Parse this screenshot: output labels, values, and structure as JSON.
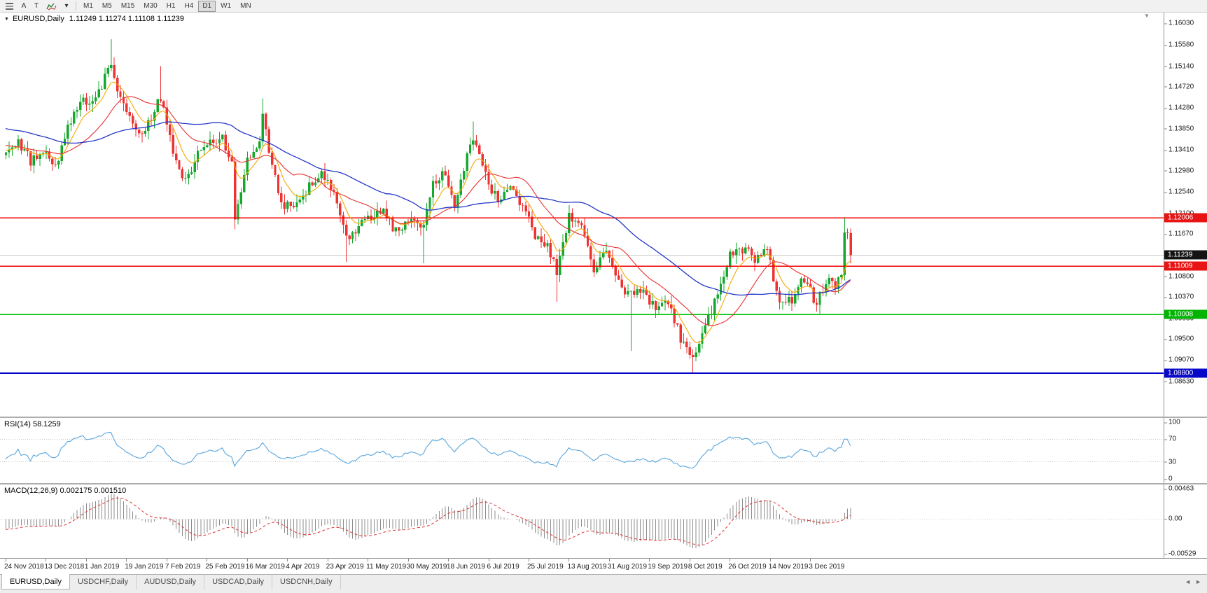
{
  "icons": {
    "dropdown_caret": "▾",
    "collapse_arrow": "▼",
    "shift_marker": "▼",
    "scroll_left": "◄",
    "scroll_right": "►"
  },
  "toolbar": {
    "pointer_label": "A",
    "text_label": "T",
    "timeframes": [
      {
        "label": "M1",
        "active": false
      },
      {
        "label": "M5",
        "active": false
      },
      {
        "label": "M15",
        "active": false
      },
      {
        "label": "M30",
        "active": false
      },
      {
        "label": "H1",
        "active": false
      },
      {
        "label": "H4",
        "active": false
      },
      {
        "label": "D1",
        "active": true
      },
      {
        "label": "W1",
        "active": false
      },
      {
        "label": "MN",
        "active": false
      }
    ]
  },
  "chart": {
    "symbol_label": "EURUSD,Daily",
    "ohlc": "1.11249 1.11274 1.11108 1.11239"
  },
  "rsi_panel": {
    "label": "RSI(14) 58.1259",
    "scale": [
      "100",
      "70",
      "30",
      "0"
    ]
  },
  "macd_panel": {
    "label": "MACD(12,26,9) 0.002175 0.001510",
    "scale": [
      "0.00463",
      "0.00",
      "-0.00529"
    ]
  },
  "price_scale": {
    "labels": [
      "1.16030",
      "1.15580",
      "1.15140",
      "1.14720",
      "1.14280",
      "1.13850",
      "1.13410",
      "1.12980",
      "1.12540",
      "1.12100",
      "1.11670",
      "1.10800",
      "1.10370",
      "1.09930",
      "1.09500",
      "1.09070",
      "1.08630"
    ],
    "badges": [
      {
        "text": "1.12006",
        "value": 1.12006,
        "bg": "#e81414",
        "fg": "#ffffff"
      },
      {
        "text": "1.11009",
        "value": 1.11009,
        "bg": "#e81414",
        "fg": "#ffffff"
      },
      {
        "text": "1.10008",
        "value": 1.10008,
        "bg": "#00b400",
        "fg": "#ffffff"
      },
      {
        "text": "1.08800",
        "value": 1.088,
        "bg": "#0808c8",
        "fg": "#ffffff"
      },
      {
        "text": "1.11239",
        "value": 1.11239,
        "bg": "#141414",
        "fg": "#ffffff"
      }
    ]
  },
  "time_axis": {
    "labels": [
      "24 Nov 2018",
      "13 Dec 2018",
      "1 Jan 2019",
      "19 Jan 2019",
      "7 Feb 2019",
      "25 Feb 2019",
      "16 Mar 2019",
      "4 Apr 2019",
      "23 Apr 2019",
      "11 May 2019",
      "30 May 2019",
      "18 Jun 2019",
      "6 Jul 2019",
      "25 Jul 2019",
      "13 Aug 2019",
      "31 Aug 2019",
      "19 Sep 2019",
      "8 Oct 2019",
      "26 Oct 2019",
      "14 Nov 2019",
      "3 Dec 2019"
    ]
  },
  "tabs": {
    "items": [
      {
        "label": "EURUSD,Daily",
        "active": true
      },
      {
        "label": "USDCHF,Daily",
        "active": false
      },
      {
        "label": "AUDUSD,Daily",
        "active": false
      },
      {
        "label": "USDCAD,Daily",
        "active": false
      },
      {
        "label": "USDCNH,Daily",
        "active": false
      }
    ]
  },
  "chart_data": {
    "type": "candlestick",
    "symbol": "EURUSD",
    "timeframe": "Daily",
    "open": 1.11249,
    "high": 1.11274,
    "low": 1.11108,
    "close": 1.11239,
    "price_axis": {
      "top": 1.1625,
      "bottom": 1.079
    },
    "bars": 274,
    "pre_bars": 60,
    "close_anchors": [
      [
        -60,
        1.1455
      ],
      [
        -45,
        1.14
      ],
      [
        -30,
        1.143
      ],
      [
        -15,
        1.1355
      ],
      [
        0,
        1.1335
      ],
      [
        4,
        1.136
      ],
      [
        8,
        1.1318
      ],
      [
        12,
        1.1345
      ],
      [
        16,
        1.1308
      ],
      [
        20,
        1.1385
      ],
      [
        24,
        1.1442
      ],
      [
        28,
        1.1448
      ],
      [
        31,
        1.1478
      ],
      [
        34,
        1.1522
      ],
      [
        36,
        1.1462
      ],
      [
        40,
        1.141
      ],
      [
        44,
        1.1372
      ],
      [
        48,
        1.1422
      ],
      [
        50,
        1.1452
      ],
      [
        54,
        1.1342
      ],
      [
        58,
        1.1272
      ],
      [
        62,
        1.1332
      ],
      [
        66,
        1.1356
      ],
      [
        70,
        1.1372
      ],
      [
        73,
        1.1308
      ],
      [
        74,
        1.1205
      ],
      [
        76,
        1.1248
      ],
      [
        78,
        1.1322
      ],
      [
        82,
        1.1352
      ],
      [
        83,
        1.1418
      ],
      [
        86,
        1.1302
      ],
      [
        90,
        1.1222
      ],
      [
        94,
        1.1228
      ],
      [
        98,
        1.1268
      ],
      [
        102,
        1.1288
      ],
      [
        106,
        1.1258
      ],
      [
        110,
        1.1158
      ],
      [
        114,
        1.1182
      ],
      [
        118,
        1.1202
      ],
      [
        122,
        1.1212
      ],
      [
        126,
        1.1172
      ],
      [
        130,
        1.1202
      ],
      [
        134,
        1.1172
      ],
      [
        138,
        1.1272
      ],
      [
        142,
        1.1292
      ],
      [
        145,
        1.1218
      ],
      [
        148,
        1.1302
      ],
      [
        151,
        1.1372
      ],
      [
        155,
        1.1288
      ],
      [
        159,
        1.1232
      ],
      [
        163,
        1.1262
      ],
      [
        167,
        1.1228
      ],
      [
        171,
        1.1158
      ],
      [
        175,
        1.1148
      ],
      [
        178,
        1.1092
      ],
      [
        182,
        1.1202
      ],
      [
        186,
        1.1178
      ],
      [
        190,
        1.1092
      ],
      [
        194,
        1.1142
      ],
      [
        198,
        1.1062
      ],
      [
        202,
        1.1042
      ],
      [
        206,
        1.1052
      ],
      [
        210,
        1.1008
      ],
      [
        214,
        1.1022
      ],
      [
        218,
        1.0952
      ],
      [
        222,
        1.0908
      ],
      [
        226,
        1.0978
      ],
      [
        230,
        1.1042
      ],
      [
        234,
        1.1122
      ],
      [
        238,
        1.1138
      ],
      [
        242,
        1.1118
      ],
      [
        246,
        1.1132
      ],
      [
        250,
        1.1028
      ],
      [
        254,
        1.1032
      ],
      [
        258,
        1.1078
      ],
      [
        262,
        1.1022
      ],
      [
        266,
        1.1082
      ],
      [
        268,
        1.1062
      ],
      [
        270,
        1.1092
      ],
      [
        271,
        1.1172
      ],
      [
        272,
        1.1158
      ],
      [
        273,
        1.11239
      ]
    ],
    "wick_highs": [
      [
        34,
        1.157
      ],
      [
        50,
        1.1514
      ],
      [
        83,
        1.1448
      ],
      [
        151,
        1.14
      ],
      [
        271,
        1.12
      ]
    ],
    "wick_lows": [
      [
        74,
        1.1177
      ],
      [
        110,
        1.111
      ],
      [
        135,
        1.1107
      ],
      [
        178,
        1.1027
      ],
      [
        202,
        1.0926
      ],
      [
        222,
        1.0879
      ]
    ],
    "levels": [
      {
        "value": 1.12006,
        "color": "#f00000",
        "width": 1.4
      },
      {
        "value": 1.11009,
        "color": "#f00000",
        "width": 1.4
      },
      {
        "value": 1.10008,
        "color": "#00c000",
        "width": 1.4
      },
      {
        "value": 1.088,
        "color": "#0000c8",
        "width": 2
      }
    ],
    "current_price": 1.11239,
    "colors": {
      "up": "#16a82e",
      "down": "#ee3232",
      "ma_fast": "#f5a800",
      "ma_mid": "#e83030",
      "ma_slow": "#2438c8",
      "rsi": "#58a6dd",
      "rsi_levels": "#c8c8c8",
      "macd_hist": "#8c8c8c",
      "macd_signal": "#dd3333",
      "current_line": "#c8c8c8"
    },
    "indicators": {
      "ma_fast_period": 8,
      "ma_mid_period": 20,
      "ma_slow_period": 50,
      "rsi": {
        "period": 14,
        "value": 58.1259,
        "scale_max": 100,
        "scale_min": 0,
        "levels": [
          70,
          30
        ]
      },
      "macd": {
        "fast": 12,
        "slow": 26,
        "signal": 9,
        "value": 0.002175,
        "signal_value": 0.00151,
        "scale_max": 0.00463,
        "scale_min": -0.00529
      }
    }
  }
}
